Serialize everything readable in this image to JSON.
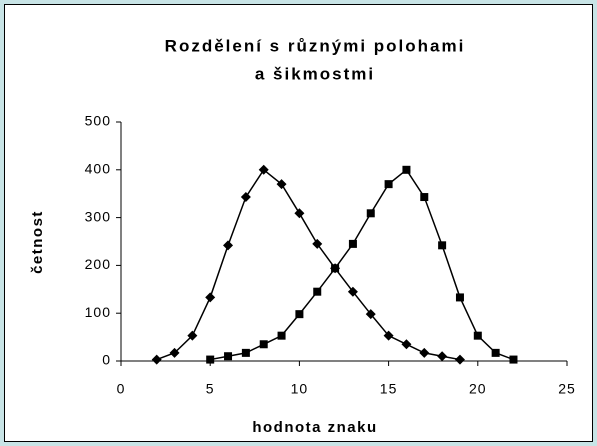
{
  "chart_data": {
    "type": "line",
    "title": [
      "Rozdělení s různými polohami",
      "a šikmostmi"
    ],
    "x_label": "hodnota znaku",
    "y_label": "četnost",
    "series": [
      {
        "color": "#000000",
        "marker": "diamond",
        "x": [
          2,
          3,
          4,
          5,
          6,
          7,
          8,
          9,
          10,
          11,
          12,
          13,
          14,
          15,
          16,
          17,
          18,
          19
        ],
        "values": [
          3,
          17,
          53,
          133,
          242,
          343,
          400,
          370,
          309,
          245,
          194,
          145,
          98,
          53,
          35,
          17,
          10,
          3
        ]
      },
      {
        "color": "#000000",
        "marker": "square",
        "x": [
          5,
          6,
          7,
          8,
          9,
          10,
          11,
          12,
          13,
          14,
          15,
          16,
          17,
          18,
          19,
          20,
          21,
          22
        ],
        "values": [
          3,
          10,
          17,
          35,
          53,
          98,
          145,
          194,
          245,
          309,
          370,
          400,
          343,
          242,
          133,
          53,
          17,
          3
        ]
      }
    ],
    "xlim": [
      0,
      25
    ],
    "xticks": [
      0,
      5,
      10,
      15,
      20,
      25
    ],
    "ylim": [
      0,
      500
    ],
    "yticks": [
      0,
      100,
      200,
      300,
      400,
      500
    ],
    "grid": false
  }
}
